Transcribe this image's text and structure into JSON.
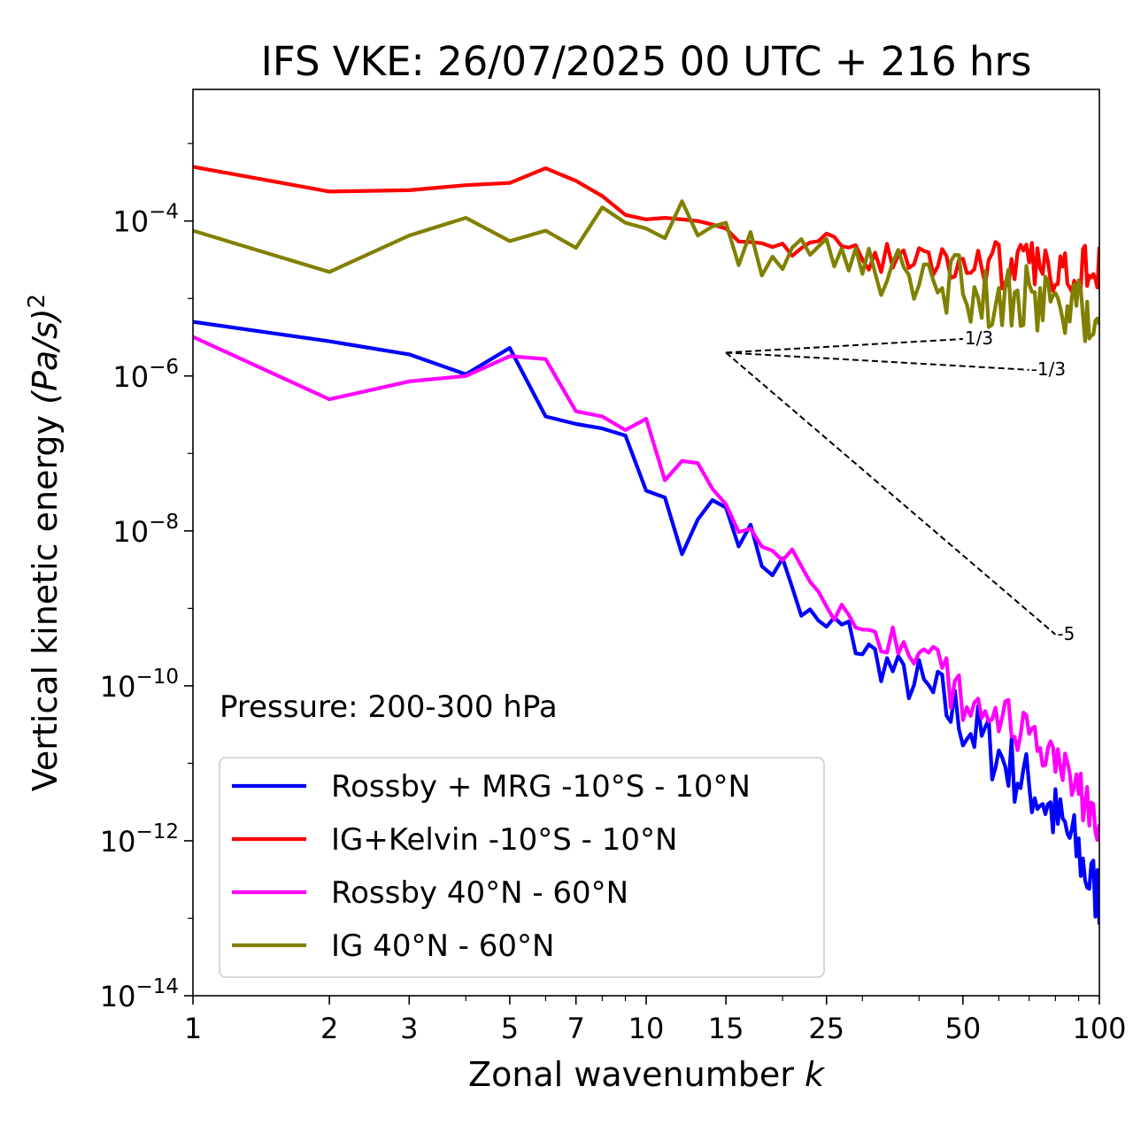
{
  "chart_data": {
    "type": "line",
    "title": "IFS VKE: 26/07/2025 00 UTC + 216 hrs",
    "xlabel": "Zonal wavenumber",
    "xlabel_italic": "k",
    "ylabel": "Vertical kinetic energy",
    "ylabel_unit": "(Pa/s)",
    "ylabel_exp": "2",
    "xscale": "log",
    "yscale": "log",
    "xlim": [
      1,
      100
    ],
    "ylim": [
      1e-14,
      0.005
    ],
    "grid": false,
    "legend_position": "lower-left",
    "x_ticks": [
      {
        "value": 1,
        "label": "1"
      },
      {
        "value": 2,
        "label": "2"
      },
      {
        "value": 3,
        "label": "3"
      },
      {
        "value": 5,
        "label": "5"
      },
      {
        "value": 7,
        "label": "7"
      },
      {
        "value": 10,
        "label": "10"
      },
      {
        "value": 15,
        "label": "15"
      },
      {
        "value": 25,
        "label": "25"
      },
      {
        "value": 50,
        "label": "50"
      },
      {
        "value": 100,
        "label": "100"
      }
    ],
    "y_ticks": [
      {
        "value": 0.0001,
        "base": "10",
        "exp": "−4"
      },
      {
        "value": 1e-06,
        "base": "10",
        "exp": "−6"
      },
      {
        "value": 1e-08,
        "base": "10",
        "exp": "−8"
      },
      {
        "value": 1e-10,
        "base": "10",
        "exp": "−10"
      },
      {
        "value": 1e-12,
        "base": "10",
        "exp": "−12"
      },
      {
        "value": 1e-14,
        "base": "10",
        "exp": "−14"
      }
    ],
    "annotation": "Pressure: 200-300 hPa",
    "reference_slopes": [
      {
        "label": "1/3",
        "x": [
          15,
          50
        ],
        "y": [
          2e-06,
          3e-06
        ]
      },
      {
        "label": "-1/3",
        "x": [
          15,
          70
        ],
        "y": [
          2e-06,
          1.2e-06
        ]
      },
      {
        "label": "-5",
        "x": [
          15,
          80
        ],
        "y": [
          2e-06,
          4.6e-10
        ]
      }
    ],
    "series": [
      {
        "name": "Rossby + MRG -10°S - 10°N",
        "color": "#0000ff",
        "anchors": [
          [
            1,
            5e-06
          ],
          [
            2,
            2.8e-06
          ],
          [
            3,
            1.9e-06
          ],
          [
            4,
            1.05e-06
          ],
          [
            5,
            2.3e-06
          ],
          [
            6,
            3e-07
          ],
          [
            7,
            2.4e-07
          ],
          [
            8,
            2.1e-07
          ],
          [
            9,
            1.7e-07
          ],
          [
            10,
            3.3e-08
          ],
          [
            11,
            2.7e-08
          ],
          [
            12,
            5e-09
          ],
          [
            13,
            1.4e-08
          ],
          [
            14,
            2.5e-08
          ],
          [
            15,
            2e-08
          ],
          [
            16,
            1.2e-08
          ],
          [
            17,
            7e-09
          ],
          [
            18,
            4.6e-09
          ],
          [
            20,
            3.3e-09
          ],
          [
            22,
            1e-09
          ],
          [
            24,
            5e-10
          ],
          [
            26,
            6e-10
          ],
          [
            28,
            4.5e-10
          ],
          [
            30,
            3e-10
          ],
          [
            35,
            1.6e-10
          ],
          [
            40,
            9e-11
          ],
          [
            45,
            6e-11
          ],
          [
            50,
            3.5e-11
          ],
          [
            55,
            2e-11
          ],
          [
            60,
            1.3e-11
          ],
          [
            65,
            8e-12
          ],
          [
            70,
            5e-12
          ],
          [
            75,
            3.5e-12
          ],
          [
            80,
            2e-12
          ],
          [
            85,
            1.2e-12
          ],
          [
            90,
            7e-13
          ],
          [
            95,
            3e-13
          ],
          [
            100,
            2e-13
          ]
        ],
        "noise": [
          0.12,
          0.28,
          0.45
        ]
      },
      {
        "name": "IG+Kelvin -10°S - 10°N",
        "color": "#ff0000",
        "anchors": [
          [
            1,
            0.0005
          ],
          [
            2,
            0.00024
          ],
          [
            3,
            0.00025
          ],
          [
            4,
            0.00029
          ],
          [
            5,
            0.00031
          ],
          [
            6,
            0.00048
          ],
          [
            7,
            0.00033
          ],
          [
            8,
            0.00021
          ],
          [
            9,
            0.00012
          ],
          [
            10,
            0.000105
          ],
          [
            11,
            0.00011
          ],
          [
            12,
            0.000105
          ],
          [
            13,
            0.0001
          ],
          [
            14,
            9e-05
          ],
          [
            15,
            8e-05
          ],
          [
            16,
            9e-05
          ],
          [
            18,
            6.5e-05
          ],
          [
            20,
            5e-05
          ],
          [
            22,
            4.5e-05
          ],
          [
            25,
            4.2e-05
          ],
          [
            30,
            3.6e-05
          ],
          [
            35,
            3.3e-05
          ],
          [
            40,
            3e-05
          ],
          [
            50,
            2.9e-05
          ],
          [
            60,
            2.7e-05
          ],
          [
            70,
            2.6e-05
          ],
          [
            80,
            2.5e-05
          ],
          [
            90,
            2.5e-05
          ],
          [
            100,
            2.9e-05
          ]
        ],
        "noise": [
          0.05,
          0.22,
          0.32
        ]
      },
      {
        "name": "Rossby 40°N - 60°N",
        "color": "#ff00ff",
        "anchors": [
          [
            1,
            3.2e-06
          ],
          [
            2,
            5e-07
          ],
          [
            3,
            8.5e-07
          ],
          [
            4,
            1e-06
          ],
          [
            5,
            1.8e-06
          ],
          [
            6,
            1.65e-06
          ],
          [
            7,
            3.5e-07
          ],
          [
            8,
            3e-07
          ],
          [
            9,
            2e-07
          ],
          [
            10,
            2.8e-07
          ],
          [
            11,
            4.5e-08
          ],
          [
            12,
            8e-08
          ],
          [
            13,
            7.5e-08
          ],
          [
            14,
            3.5e-08
          ],
          [
            15,
            2.2e-08
          ],
          [
            16,
            1.6e-08
          ],
          [
            17,
            1.2e-08
          ],
          [
            18,
            8e-09
          ],
          [
            20,
            5e-09
          ],
          [
            22,
            3e-09
          ],
          [
            24,
            1.3e-09
          ],
          [
            26,
            1e-09
          ],
          [
            28,
            8e-10
          ],
          [
            30,
            6e-10
          ],
          [
            35,
            3.5e-10
          ],
          [
            40,
            2.2e-10
          ],
          [
            45,
            1.4e-10
          ],
          [
            50,
            8e-11
          ],
          [
            55,
            5.5e-11
          ],
          [
            60,
            3.8e-11
          ],
          [
            65,
            2.6e-11
          ],
          [
            70,
            1.9e-11
          ],
          [
            75,
            1.3e-11
          ],
          [
            80,
            9e-12
          ],
          [
            85,
            6e-12
          ],
          [
            90,
            4e-12
          ],
          [
            95,
            2.6e-12
          ],
          [
            100,
            1.5e-12
          ]
        ],
        "noise": [
          0.1,
          0.22,
          0.35
        ]
      },
      {
        "name": "IG 40°N - 60°N",
        "color": "#808000",
        "anchors": [
          [
            1,
            7.5e-05
          ],
          [
            2,
            2.2e-05
          ],
          [
            3,
            6.5e-05
          ],
          [
            4,
            0.00011
          ],
          [
            5,
            5.5e-05
          ],
          [
            6,
            7.5e-05
          ],
          [
            7,
            4.5e-05
          ],
          [
            8,
            0.00015
          ],
          [
            9,
            9.5e-05
          ],
          [
            10,
            8e-05
          ],
          [
            11,
            6e-05
          ],
          [
            12,
            0.00018
          ],
          [
            13,
            6.5e-05
          ],
          [
            14,
            8.5e-05
          ],
          [
            15,
            9.5e-05
          ],
          [
            16,
            6e-05
          ],
          [
            17,
            6e-05
          ],
          [
            18,
            3e-05
          ],
          [
            20,
            4.5e-05
          ],
          [
            22,
            3.5e-05
          ],
          [
            25,
            3.2e-05
          ],
          [
            30,
            2.5e-05
          ],
          [
            35,
            2e-05
          ],
          [
            40,
            1.6e-05
          ],
          [
            50,
            1.3e-05
          ],
          [
            60,
            1.1e-05
          ],
          [
            70,
            1e-05
          ],
          [
            80,
            8.5e-06
          ],
          [
            90,
            7.5e-06
          ],
          [
            100,
            7e-06
          ]
        ],
        "noise": [
          0.1,
          0.35,
          0.45
        ]
      }
    ]
  }
}
